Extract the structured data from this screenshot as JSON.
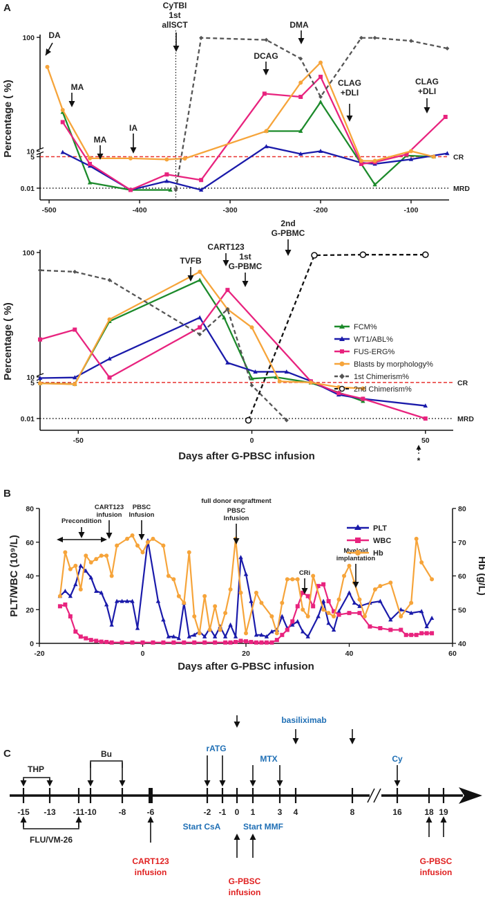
{
  "panel_labels": [
    "A",
    "B",
    "C"
  ],
  "chart_data": [
    {
      "id": "A1",
      "type": "line",
      "ylabel": "Percentage ( %)",
      "xlabel": "",
      "xlim": [
        -510,
        -58
      ],
      "x_ticks": [
        "-500",
        "-400",
        "-300",
        "-200",
        "-100"
      ],
      "x_tick_values": [
        -500,
        -400,
        -300,
        -200,
        -100
      ],
      "y_ticks": [
        "100",
        "10",
        "5",
        "0.01"
      ],
      "y_tick_values": [
        100,
        10,
        5,
        0.01
      ],
      "ref_lines": [
        {
          "label": "CR",
          "y": 5,
          "color": "#e8312f",
          "style": "dashed"
        },
        {
          "label": "MRD",
          "y": 0.01,
          "color": "#111111",
          "style": "dotted"
        }
      ],
      "vline": {
        "x": -360,
        "label": "CyTBI 1st allSCT"
      },
      "annotations": [
        {
          "text": "DA",
          "x": -502,
          "y": 62
        },
        {
          "text": "MA",
          "x": -484,
          "y": 22
        },
        {
          "text": "MA",
          "x": -450,
          "y": 3.2
        },
        {
          "text": "IA",
          "x": -408,
          "y": 3.2
        },
        {
          "text": "DCAG",
          "x": -260,
          "y": 40
        },
        {
          "text": "DMA",
          "x": -218,
          "y": 75
        },
        {
          "text": "CLAG +DLI",
          "x": -185,
          "y": 3.0
        },
        {
          "text": "CLAG +DLI",
          "x": -88,
          "y": 6
        }
      ],
      "series": [
        {
          "name": "FCM%",
          "color": "#1c8a2b",
          "marker": "tri",
          "x": [
            -485,
            -455,
            -410,
            -366
          ],
          "y": [
            22,
            0.03,
            0.005,
            0.005
          ]
        },
        {
          "name": "FCM%",
          "color": "#1c8a2b",
          "marker": "tri",
          "x": [
            -260,
            -222,
            -200,
            -155,
            -140,
            -105,
            -75
          ],
          "y": [
            15,
            15,
            27,
            1.2,
            0.02,
            6,
            5
          ]
        },
        {
          "name": "WT1/ABL%",
          "color": "#1a1aaa",
          "marker": "tri",
          "x": [
            -485,
            -455,
            -410,
            -370,
            -332,
            -260,
            -222,
            -200,
            -155,
            -140,
            -100,
            -60
          ],
          "y": [
            9,
            0.8,
            0.005,
            0.04,
            0.005,
            11,
            7.5,
            10,
            1.5,
            1.2,
            3.0,
            8
          ]
        },
        {
          "name": "FUS-ERG%",
          "color": "#e8237e",
          "marker": "sq",
          "x": [
            -485,
            -455,
            -410,
            -370,
            -332,
            -262,
            -222,
            -200,
            -155,
            -140,
            -105,
            -62
          ],
          "y": [
            18,
            1.2,
            0.005,
            0.15,
            0.05,
            32,
            30,
            45,
            1.2,
            1.7,
            7,
            20
          ]
        },
        {
          "name": "Blasts by morphology%",
          "color": "#f6a43a",
          "marker": "dot",
          "x": [
            -502,
            -485,
            -455,
            -410,
            -370,
            -350,
            -260,
            -222,
            -200,
            -155,
            -140,
            -100,
            -75
          ],
          "y": [
            55,
            23,
            3.6,
            3.6,
            2.9,
            3.5,
            15,
            40,
            60,
            2.2,
            2.2,
            10,
            5
          ]
        },
        {
          "name": "1st Chimerism%",
          "color": "#555555",
          "marker": "dash",
          "dashed": true,
          "x": [
            -360,
            -332,
            -260,
            -222,
            -200,
            -155,
            -140,
            -100,
            -60
          ],
          "y": [
            0.005,
            99,
            95,
            65,
            30,
            99,
            99,
            93,
            80
          ]
        }
      ]
    },
    {
      "id": "A2",
      "type": "line",
      "ylabel": "Percentage ( %)",
      "xlabel": "Days after G-PBSC infusion",
      "xlim": [
        -61,
        58
      ],
      "x_ticks": [
        "-50",
        "0",
        "50"
      ],
      "x_tick_values": [
        -50,
        0,
        50
      ],
      "y_ticks": [
        "100",
        "10",
        "5",
        "0.01"
      ],
      "y_tick_values": [
        100,
        10,
        5,
        0.01
      ],
      "ref_lines": [
        {
          "label": "CR",
          "y": 5,
          "color": "#e8312f",
          "style": "dashed"
        },
        {
          "label": "MRD",
          "y": 0.01,
          "color": "#111111",
          "style": "dotted"
        }
      ],
      "annotations": [
        {
          "text": "TVFB",
          "x": -15,
          "y": 85
        },
        {
          "text": "CART123",
          "x": -7,
          "y": 100
        },
        {
          "text": "1st G-PBMC",
          "x": 0,
          "y": 45
        },
        {
          "text": "2nd G-PBMC",
          "x": 18,
          "y": 100
        },
        {
          "text": "*",
          "x": 50,
          "y": 0.002
        }
      ],
      "series": [
        {
          "name": "FCM%",
          "color": "#1c8a2b",
          "marker": "tri",
          "x": [
            -61,
            -51,
            -41,
            -15,
            -8,
            0,
            7,
            17,
            25,
            32
          ],
          "y": [
            4.4,
            3.8,
            28,
            60,
            30,
            8.5,
            9.8,
            4.8,
            0.9,
            0.2
          ]
        },
        {
          "name": "WT1/ABL%",
          "color": "#1a1aaa",
          "marker": "tri",
          "x": [
            -61,
            -51,
            -41,
            -15,
            -7,
            1,
            10,
            17,
            25,
            32,
            50
          ],
          "y": [
            9,
            9.5,
            14,
            30,
            13,
            11,
            11,
            6.2,
            0.6,
            0.3,
            0.09
          ]
        },
        {
          "name": "FUS-ERG%",
          "color": "#e8237e",
          "marker": "sq",
          "x": [
            -61,
            -51,
            -41,
            -15,
            -7,
            17,
            25,
            32,
            50
          ],
          "y": [
            20,
            24,
            9.5,
            25,
            50,
            6,
            0.8,
            0.3,
            0.01
          ]
        },
        {
          "name": "Blasts by morphology%",
          "color": "#f6a43a",
          "marker": "dot",
          "x": [
            -61,
            -51,
            -41,
            -15,
            -7,
            0,
            8,
            17,
            25,
            32
          ],
          "y": [
            4.3,
            3.7,
            29,
            70,
            35,
            25,
            6,
            5,
            2.2,
            1.8
          ]
        },
        {
          "name": "1st Chimerism%",
          "color": "#555555",
          "marker": "dash",
          "dashed": true,
          "x": [
            -61,
            -51,
            -41,
            -15,
            -7,
            0,
            10
          ],
          "y": [
            72,
            70,
            60,
            22,
            35,
            3.0,
            0.005
          ]
        },
        {
          "name": "2nd Chimerism%",
          "color": "#111111",
          "marker": "circle",
          "dashed": true,
          "x": [
            -1,
            18,
            32,
            50
          ],
          "y": [
            0.005,
            95,
            96,
            96
          ]
        }
      ],
      "legend": [
        "FCM%",
        "WT1/ABL%",
        "FUS-ERG%",
        "Blasts by  morphology%",
        "1st Chimerism%",
        "2nd Chimerism%"
      ]
    },
    {
      "id": "B",
      "type": "line",
      "xlabel": "Days after G-PBSC infusion",
      "ylabel": "PLT/WBC (10⁹/L)",
      "y2label": "Hb (g/L)",
      "xlim": [
        -20,
        60
      ],
      "ylim": [
        0,
        80
      ],
      "y2lim": [
        40,
        80
      ],
      "x_ticks": [
        "-20",
        "0",
        "20",
        "40",
        "60"
      ],
      "x_tick_values": [
        -20,
        0,
        20,
        40,
        60
      ],
      "y_ticks": [
        "0",
        "20",
        "40",
        "60",
        "80"
      ],
      "y_tick_values": [
        0,
        20,
        40,
        60,
        80
      ],
      "y2_ticks": [
        "40",
        "50",
        "60",
        "70",
        "80"
      ],
      "y2_tick_values": [
        40,
        50,
        60,
        70,
        80
      ],
      "annotations": [
        {
          "text": "Precondition",
          "x": -12,
          "y": 68
        },
        {
          "text": "CART123 infusion",
          "x": -7,
          "y": 75
        },
        {
          "text": "PBSC Infusion",
          "x": 0,
          "y": 75
        },
        {
          "text": "full donor engraftment",
          "x": 18,
          "y": 79
        },
        {
          "text": "PBSC Infusion",
          "x": 18,
          "y": 74
        },
        {
          "text": "CRi",
          "x": 32,
          "y": 40
        },
        {
          "text": "Myeloid implantation",
          "x": 42,
          "y": 56
        }
      ],
      "series": [
        {
          "name": "PLT",
          "color": "#1a1aaa",
          "marker": "tri",
          "axis": "left",
          "x": [
            -16,
            -15,
            -14,
            -13,
            -12,
            -11,
            -10,
            -9,
            -8,
            -7,
            -6,
            -5,
            -4,
            -3,
            -2,
            -1,
            1,
            3,
            4,
            5,
            6,
            7,
            8,
            9,
            10,
            11,
            12,
            13,
            14,
            15,
            16,
            17,
            18,
            19,
            20,
            21,
            22,
            23,
            24,
            25,
            26,
            27,
            28,
            29,
            30,
            31,
            32,
            34,
            35,
            36,
            37,
            38,
            40,
            41,
            42,
            44,
            46,
            48,
            50,
            52,
            54,
            55,
            56
          ],
          "y": [
            28,
            31,
            28,
            35,
            46,
            43,
            39,
            31,
            30,
            23,
            11,
            25,
            25,
            25,
            25,
            9,
            61,
            25,
            14,
            4,
            4,
            3,
            24,
            4,
            5,
            7,
            4,
            9,
            4,
            10,
            4,
            11,
            4,
            51,
            41,
            25,
            5,
            5,
            4,
            7,
            8,
            16,
            9,
            11,
            13,
            7,
            4,
            16,
            25,
            12,
            8,
            19,
            30,
            24,
            22,
            24,
            25,
            14,
            20,
            18,
            19,
            10,
            15
          ]
        },
        {
          "name": "WBC",
          "color": "#e8237e",
          "marker": "sq",
          "axis": "left",
          "x": [
            -16,
            -15,
            -14,
            -13,
            -12,
            -11,
            -10,
            -9,
            -8,
            -7,
            -6,
            -4,
            -2,
            0,
            2,
            4,
            6,
            8,
            10,
            12,
            14,
            16,
            17,
            18,
            19,
            20,
            21,
            22,
            23,
            24,
            25,
            26,
            27,
            28,
            29,
            30,
            31,
            32,
            33,
            34,
            35,
            36,
            37,
            38,
            40,
            42,
            44,
            46,
            48,
            50,
            51,
            52,
            53,
            54,
            55,
            56
          ],
          "y": [
            22,
            23,
            16,
            7,
            4,
            3,
            2,
            1.5,
            1,
            0.8,
            0.5,
            0.5,
            0.5,
            0.5,
            0.5,
            0.5,
            0.5,
            0.5,
            0.5,
            0.5,
            0.5,
            0.5,
            0.5,
            0.8,
            1.5,
            1.2,
            0.8,
            0.5,
            0.5,
            0.5,
            0.5,
            2,
            5,
            8,
            13,
            22,
            30,
            28,
            22,
            34,
            35,
            25,
            19,
            17,
            18,
            18,
            10,
            9,
            8,
            8,
            5,
            5,
            5,
            6,
            6,
            6
          ]
        },
        {
          "name": "Hb",
          "color": "#f6a43a",
          "marker": "dot",
          "axis": "right",
          "x": [
            -16,
            -15,
            -14,
            -13,
            -12,
            -11,
            -10,
            -9,
            -8,
            -7,
            -6,
            -5,
            -3,
            -2,
            -1,
            0,
            1,
            2,
            4,
            5,
            6,
            7,
            8,
            9,
            10,
            11,
            12,
            13,
            14,
            15,
            16,
            17,
            18,
            19,
            20,
            22,
            23,
            25,
            26,
            27,
            28,
            29,
            30,
            31,
            32,
            33,
            35,
            36,
            37,
            38,
            39,
            40,
            41,
            42,
            43,
            45,
            46,
            48,
            50,
            52,
            53,
            54,
            56
          ],
          "y": [
            54,
            67,
            62,
            63,
            56,
            66,
            64,
            65,
            66,
            66,
            60,
            69,
            71,
            72,
            69,
            67,
            70,
            71,
            69,
            60,
            59,
            54,
            52,
            67,
            48,
            43,
            54,
            44,
            51,
            44,
            49,
            56,
            71,
            55,
            43,
            55,
            52,
            48,
            43,
            52,
            59,
            59,
            59,
            50,
            48,
            60,
            50,
            49,
            48,
            53,
            60,
            63,
            58,
            53,
            48,
            56,
            57,
            58,
            48,
            52,
            71,
            64,
            59
          ]
        }
      ],
      "legend": [
        "PLT",
        "WBC",
        "Hb"
      ]
    }
  ],
  "timeline": {
    "ticks": [
      "-15",
      "-13",
      "-11",
      "-10",
      "-8",
      "-6",
      "-2",
      "-1",
      "0",
      "1",
      "3",
      "4",
      "8",
      "16",
      "18",
      "19"
    ],
    "drugs_above": [
      {
        "label": "THP",
        "color": "#222222"
      },
      {
        "label": "Bu",
        "color": "#222222"
      },
      {
        "label": "rATG",
        "color": "#1f6fb5"
      },
      {
        "label": "MTX",
        "color": "#1f6fb5"
      },
      {
        "label": "basiliximab",
        "color": "#1f6fb5"
      },
      {
        "label": "Cy",
        "color": "#1f6fb5"
      }
    ],
    "labels_below": [
      {
        "label": "FLU/VM-26",
        "color": "#222222"
      },
      {
        "label": "Start CsA",
        "color": "#1f6fb5"
      },
      {
        "label": "Start MMF",
        "color": "#1f6fb5"
      }
    ],
    "infusions": [
      {
        "line1": "CART123",
        "line2": "infusion",
        "color": "#e02020"
      },
      {
        "line1": "G-PBSC",
        "line2": "infusion",
        "color": "#e02020"
      },
      {
        "line1": "G-PBSC",
        "line2": "infusion",
        "color": "#e02020"
      }
    ]
  },
  "colors": {
    "fcm": "#1c8a2b",
    "wt1": "#1a1aaa",
    "fus": "#e8237e",
    "blasts": "#f6a43a",
    "chim1": "#555555",
    "chim2": "#111111",
    "cr_line": "#e8312f",
    "accent_blue": "#1f6fb5",
    "accent_red": "#e02020"
  }
}
